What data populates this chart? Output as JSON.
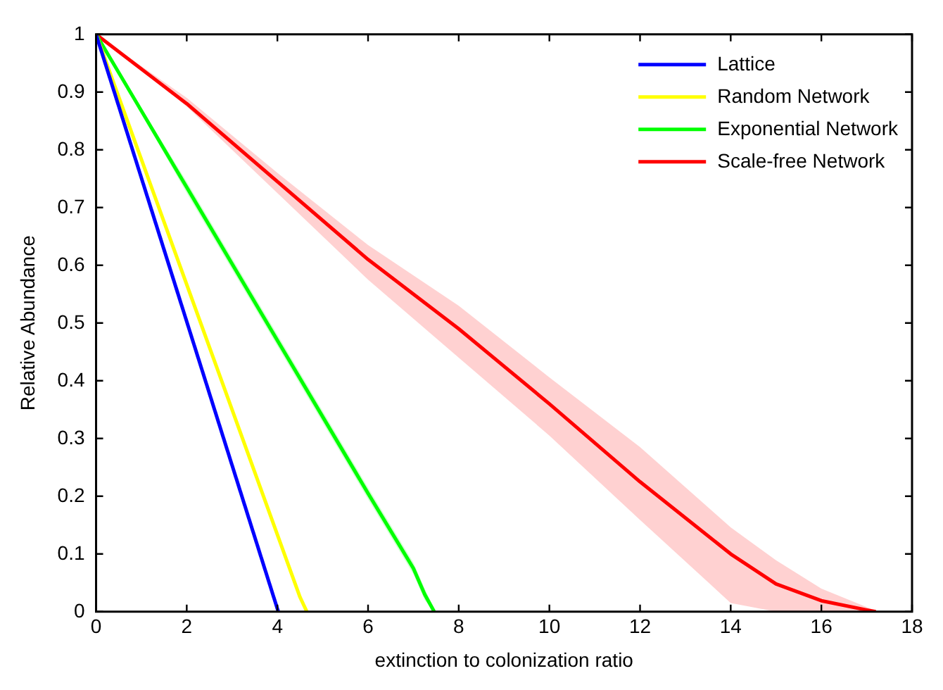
{
  "chart_data": {
    "type": "line",
    "xlabel": "extinction to colonization ratio",
    "ylabel": "Relative Abundance",
    "xlim": [
      0,
      18
    ],
    "ylim": [
      0,
      1
    ],
    "xticks": [
      0,
      2,
      4,
      6,
      8,
      10,
      12,
      14,
      16,
      18
    ],
    "yticks": [
      0,
      0.1,
      0.2,
      0.3,
      0.4,
      0.5,
      0.6,
      0.7,
      0.8,
      0.9,
      1
    ],
    "grid": false,
    "legend": "top right",
    "marker": "none",
    "line_style": "solid",
    "series": [
      {
        "name": "Lattice",
        "color": "#0000ff",
        "x": [
          0,
          4.02
        ],
        "values": [
          1,
          0
        ]
      },
      {
        "name": "Random Network",
        "color": "#ffff00",
        "x": [
          0,
          4.5,
          4.65
        ],
        "values": [
          1,
          0.025,
          0
        ]
      },
      {
        "name": "Exponential Network",
        "color": "#00ff00",
        "x": [
          0,
          2,
          4,
          6,
          7,
          7.25,
          7.46
        ],
        "values": [
          1,
          0.735,
          0.47,
          0.205,
          0.075,
          0.03,
          0
        ],
        "lower": [
          1,
          0.725,
          0.46,
          0.195,
          0.065,
          0.02,
          0
        ],
        "upper": [
          1,
          0.745,
          0.48,
          0.215,
          0.085,
          0.04,
          0.005
        ]
      },
      {
        "name": "Scale-free Network",
        "color": "#ff0000",
        "x": [
          0,
          2,
          4,
          6,
          8,
          10,
          12,
          14,
          15,
          16,
          17,
          17.2
        ],
        "values": [
          1,
          0.88,
          0.745,
          0.61,
          0.49,
          0.36,
          0.225,
          0.1,
          0.048,
          0.019,
          0.003,
          0
        ],
        "lower": [
          1,
          0.875,
          0.725,
          0.575,
          0.44,
          0.305,
          0.159,
          0.015,
          0,
          0,
          0,
          0
        ],
        "upper": [
          1,
          0.89,
          0.76,
          0.635,
          0.53,
          0.406,
          0.285,
          0.146,
          0.089,
          0.04,
          0.008,
          0.002
        ]
      }
    ]
  }
}
